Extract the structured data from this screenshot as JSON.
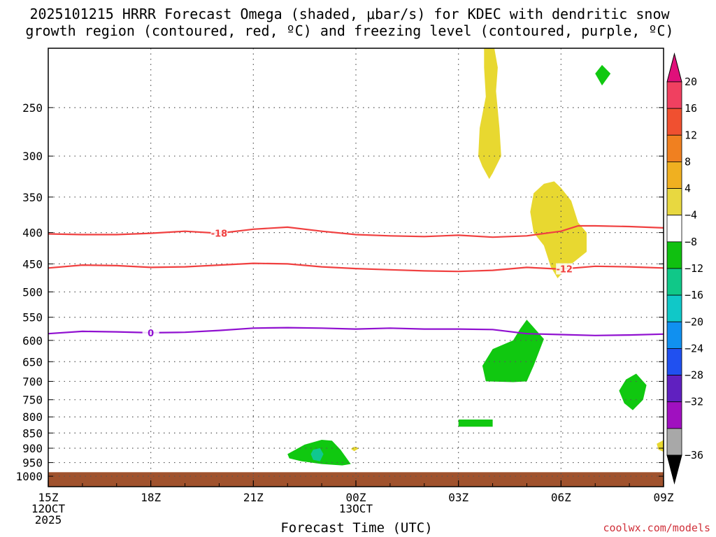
{
  "title_line1": "2025101215 HRRR Forecast Omega (shaded, μbar/s) for KDEC with dendritic snow",
  "title_line2": "growth region (contoured, red, ºC) and freezing level (contoured, purple, ºC)",
  "xlabel": "Forecast Time (UTC)",
  "credit": "coolwx.com/models",
  "chart_data": {
    "type": "heatmap",
    "x_unit": "hours after 2025-10-12 15Z",
    "x_range": [
      0,
      18
    ],
    "x_ticks": [
      {
        "x": 0,
        "lines": [
          "15Z",
          "12OCT",
          "2025"
        ]
      },
      {
        "x": 3,
        "lines": [
          "18Z"
        ]
      },
      {
        "x": 6,
        "lines": [
          "21Z"
        ]
      },
      {
        "x": 9,
        "lines": [
          "00Z",
          "13OCT"
        ]
      },
      {
        "x": 12,
        "lines": [
          "03Z"
        ]
      },
      {
        "x": 15,
        "lines": [
          "06Z"
        ]
      },
      {
        "x": 18,
        "lines": [
          "09Z"
        ]
      }
    ],
    "y_axis": "pressure (mb), log scale, inverted",
    "y_range": [
      1040,
      200
    ],
    "y_ticks": [
      250,
      300,
      350,
      400,
      450,
      500,
      550,
      600,
      650,
      700,
      750,
      800,
      850,
      900,
      950,
      1000
    ],
    "grid": true,
    "colorbar": {
      "labels": [
        20,
        16,
        12,
        8,
        4,
        -4,
        -8,
        -12,
        -16,
        -20,
        -24,
        -28,
        -32,
        -36
      ],
      "colors": [
        "#f04060",
        "#f05030",
        "#f08020",
        "#f0b020",
        "#e8d840",
        "#ffffff",
        "#10c010",
        "#10c888",
        "#10c8c8",
        "#1090f0",
        "#2050f0",
        "#6020c0",
        "#a010c0",
        "#a8a8a8"
      ],
      "top_arrow_color": "#e0107a",
      "bottom_arrow_color": "#000000"
    },
    "contours": [
      {
        "name": "-18",
        "color": "#f04040",
        "label": "-18",
        "label_x": 5.0,
        "points": [
          [
            0,
            402
          ],
          [
            1,
            403
          ],
          [
            2,
            403
          ],
          [
            3,
            401
          ],
          [
            4,
            398
          ],
          [
            5,
            401
          ],
          [
            6,
            395
          ],
          [
            7,
            392
          ],
          [
            8,
            398
          ],
          [
            9,
            403
          ],
          [
            10,
            405
          ],
          [
            11,
            406
          ],
          [
            12,
            404
          ],
          [
            13,
            407
          ],
          [
            14,
            405
          ],
          [
            15,
            398
          ],
          [
            15.5,
            390
          ],
          [
            16,
            390
          ],
          [
            17,
            391
          ],
          [
            18,
            393
          ]
        ]
      },
      {
        "name": "-12",
        "color": "#f04040",
        "label": "-12",
        "label_x": 15.1,
        "points": [
          [
            0,
            457
          ],
          [
            1,
            452
          ],
          [
            2,
            453
          ],
          [
            3,
            456
          ],
          [
            4,
            455
          ],
          [
            5,
            452
          ],
          [
            6,
            449
          ],
          [
            7,
            450
          ],
          [
            8,
            455
          ],
          [
            9,
            458
          ],
          [
            10,
            460
          ],
          [
            11,
            462
          ],
          [
            12,
            463
          ],
          [
            13,
            461
          ],
          [
            14,
            456
          ],
          [
            15,
            459
          ],
          [
            16,
            454
          ],
          [
            17,
            455
          ],
          [
            18,
            457
          ]
        ]
      },
      {
        "name": "0",
        "color": "#9010d0",
        "label": "0",
        "label_x": 3.0,
        "points": [
          [
            0,
            585
          ],
          [
            1,
            580
          ],
          [
            2,
            581
          ],
          [
            3,
            583
          ],
          [
            4,
            582
          ],
          [
            5,
            578
          ],
          [
            6,
            573
          ],
          [
            7,
            572
          ],
          [
            8,
            573
          ],
          [
            9,
            575
          ],
          [
            10,
            573
          ],
          [
            11,
            575
          ],
          [
            12,
            575
          ],
          [
            13,
            576
          ],
          [
            14,
            585
          ],
          [
            15,
            587
          ],
          [
            16,
            589
          ],
          [
            17,
            588
          ],
          [
            18,
            586
          ]
        ]
      }
    ],
    "shaded_regions": [
      {
        "color": "#e8d830",
        "points": [
          [
            12.75,
            200
          ],
          [
            13.05,
            200
          ],
          [
            13.15,
            215
          ],
          [
            13.1,
            235
          ],
          [
            13.2,
            270
          ],
          [
            13.25,
            300
          ],
          [
            13.0,
            320
          ],
          [
            12.9,
            327
          ],
          [
            12.7,
            312
          ],
          [
            12.58,
            300
          ],
          [
            12.62,
            270
          ],
          [
            12.8,
            240
          ],
          [
            12.75,
            215
          ]
        ]
      },
      {
        "color": "#e8d830",
        "points": [
          [
            15.0,
            338
          ],
          [
            15.3,
            355
          ],
          [
            15.5,
            385
          ],
          [
            15.75,
            400
          ],
          [
            15.75,
            430
          ],
          [
            15.2,
            455
          ],
          [
            14.9,
            475
          ],
          [
            14.7,
            455
          ],
          [
            14.5,
            420
          ],
          [
            14.2,
            400
          ],
          [
            14.1,
            370
          ],
          [
            14.2,
            345
          ],
          [
            14.5,
            333
          ],
          [
            14.8,
            330
          ]
        ]
      },
      {
        "color": "#10c810",
        "points": [
          [
            16.2,
            213
          ],
          [
            16.45,
            220
          ],
          [
            16.2,
            230
          ],
          [
            16.0,
            220
          ]
        ]
      },
      {
        "color": "#10c810",
        "points": [
          [
            14.0,
            555
          ],
          [
            14.5,
            597
          ],
          [
            14.2,
            660
          ],
          [
            14.0,
            700
          ],
          [
            13.6,
            702
          ],
          [
            12.8,
            700
          ],
          [
            12.7,
            660
          ],
          [
            13.0,
            620
          ],
          [
            13.6,
            600
          ],
          [
            13.8,
            575
          ]
        ]
      },
      {
        "color": "#10c810",
        "points": [
          [
            17.2,
            680
          ],
          [
            17.5,
            710
          ],
          [
            17.4,
            750
          ],
          [
            17.1,
            780
          ],
          [
            16.85,
            760
          ],
          [
            16.7,
            725
          ],
          [
            16.9,
            695
          ]
        ]
      },
      {
        "color": "#10c810",
        "points": [
          [
            12.0,
            808
          ],
          [
            13.0,
            808
          ],
          [
            13.0,
            830
          ],
          [
            12.0,
            830
          ]
        ]
      },
      {
        "color": "#10c810",
        "points": [
          [
            7.0,
            920
          ],
          [
            7.5,
            888
          ],
          [
            8.0,
            872
          ],
          [
            8.3,
            875
          ],
          [
            8.55,
            905
          ],
          [
            8.85,
            955
          ],
          [
            8.6,
            960
          ],
          [
            8.0,
            955
          ],
          [
            7.4,
            945
          ],
          [
            7.05,
            935
          ]
        ]
      },
      {
        "color": "#10c890",
        "points": [
          [
            7.75,
            905
          ],
          [
            7.95,
            900
          ],
          [
            8.05,
            920
          ],
          [
            7.95,
            945
          ],
          [
            7.75,
            940
          ],
          [
            7.68,
            920
          ]
        ]
      },
      {
        "color": "#e8d830",
        "points": [
          [
            8.95,
            895
          ],
          [
            9.1,
            900
          ],
          [
            8.95,
            910
          ],
          [
            8.85,
            902
          ]
        ]
      },
      {
        "color": "#e8d830",
        "points": [
          [
            18.0,
            873
          ],
          [
            17.8,
            885
          ],
          [
            17.85,
            905
          ],
          [
            18.0,
            912
          ]
        ]
      }
    ],
    "ground_color": "#a0522d",
    "ground_level": 985
  }
}
